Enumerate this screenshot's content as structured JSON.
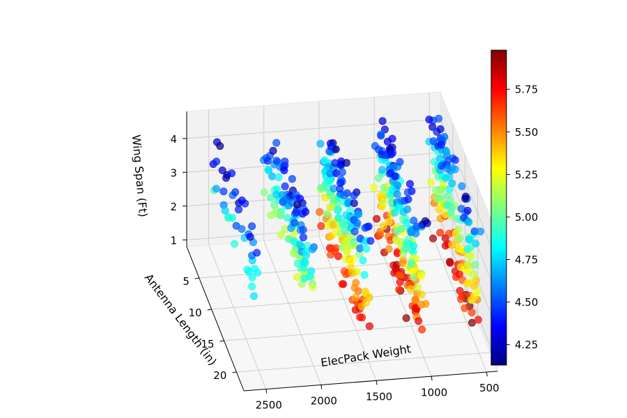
{
  "chart_data": {
    "type": "scatter3d",
    "x_label": "ElecPack Weight",
    "y_label": "Antenna Length (in)",
    "z_label": "Wing Span (Ft)",
    "x_ticks": [
      2500,
      2000,
      1500,
      1000,
      500
    ],
    "y_ticks": [
      5,
      10,
      15,
      20
    ],
    "z_ticks": [
      1,
      2,
      3,
      4
    ],
    "x_range": [
      400,
      2700
    ],
    "y_range": [
      0,
      23
    ],
    "z_range": [
      0.8,
      4.8
    ],
    "colorbar": {
      "colormap": "jet",
      "min": 4.13,
      "max": 5.98,
      "ticks": [
        "4.25",
        "4.50",
        "4.75",
        "5.00",
        "5.25",
        "5.50",
        "5.75"
      ]
    },
    "clusters": [
      {
        "x": 2500,
        "y_range": [
          2,
          19
        ],
        "z_range": [
          2.8,
          4.6
        ],
        "c_range": [
          4.2,
          4.95
        ],
        "count": 40
      },
      {
        "x": 2000,
        "y_range": [
          2,
          19
        ],
        "z_range": [
          2.5,
          4.6
        ],
        "c_range": [
          4.25,
          5.3
        ],
        "count": 110
      },
      {
        "x": 1500,
        "y_range": [
          2,
          19
        ],
        "z_range": [
          1.5,
          4.6
        ],
        "c_range": [
          4.3,
          5.7
        ],
        "count": 170
      },
      {
        "x": 1000,
        "y_range": [
          2,
          19
        ],
        "z_range": [
          1.0,
          4.6
        ],
        "c_range": [
          4.3,
          5.95
        ],
        "count": 190
      },
      {
        "x": 500,
        "y_range": [
          2,
          19
        ],
        "z_range": [
          1.0,
          4.6
        ],
        "c_range": [
          4.3,
          5.95
        ],
        "count": 150
      }
    ]
  }
}
